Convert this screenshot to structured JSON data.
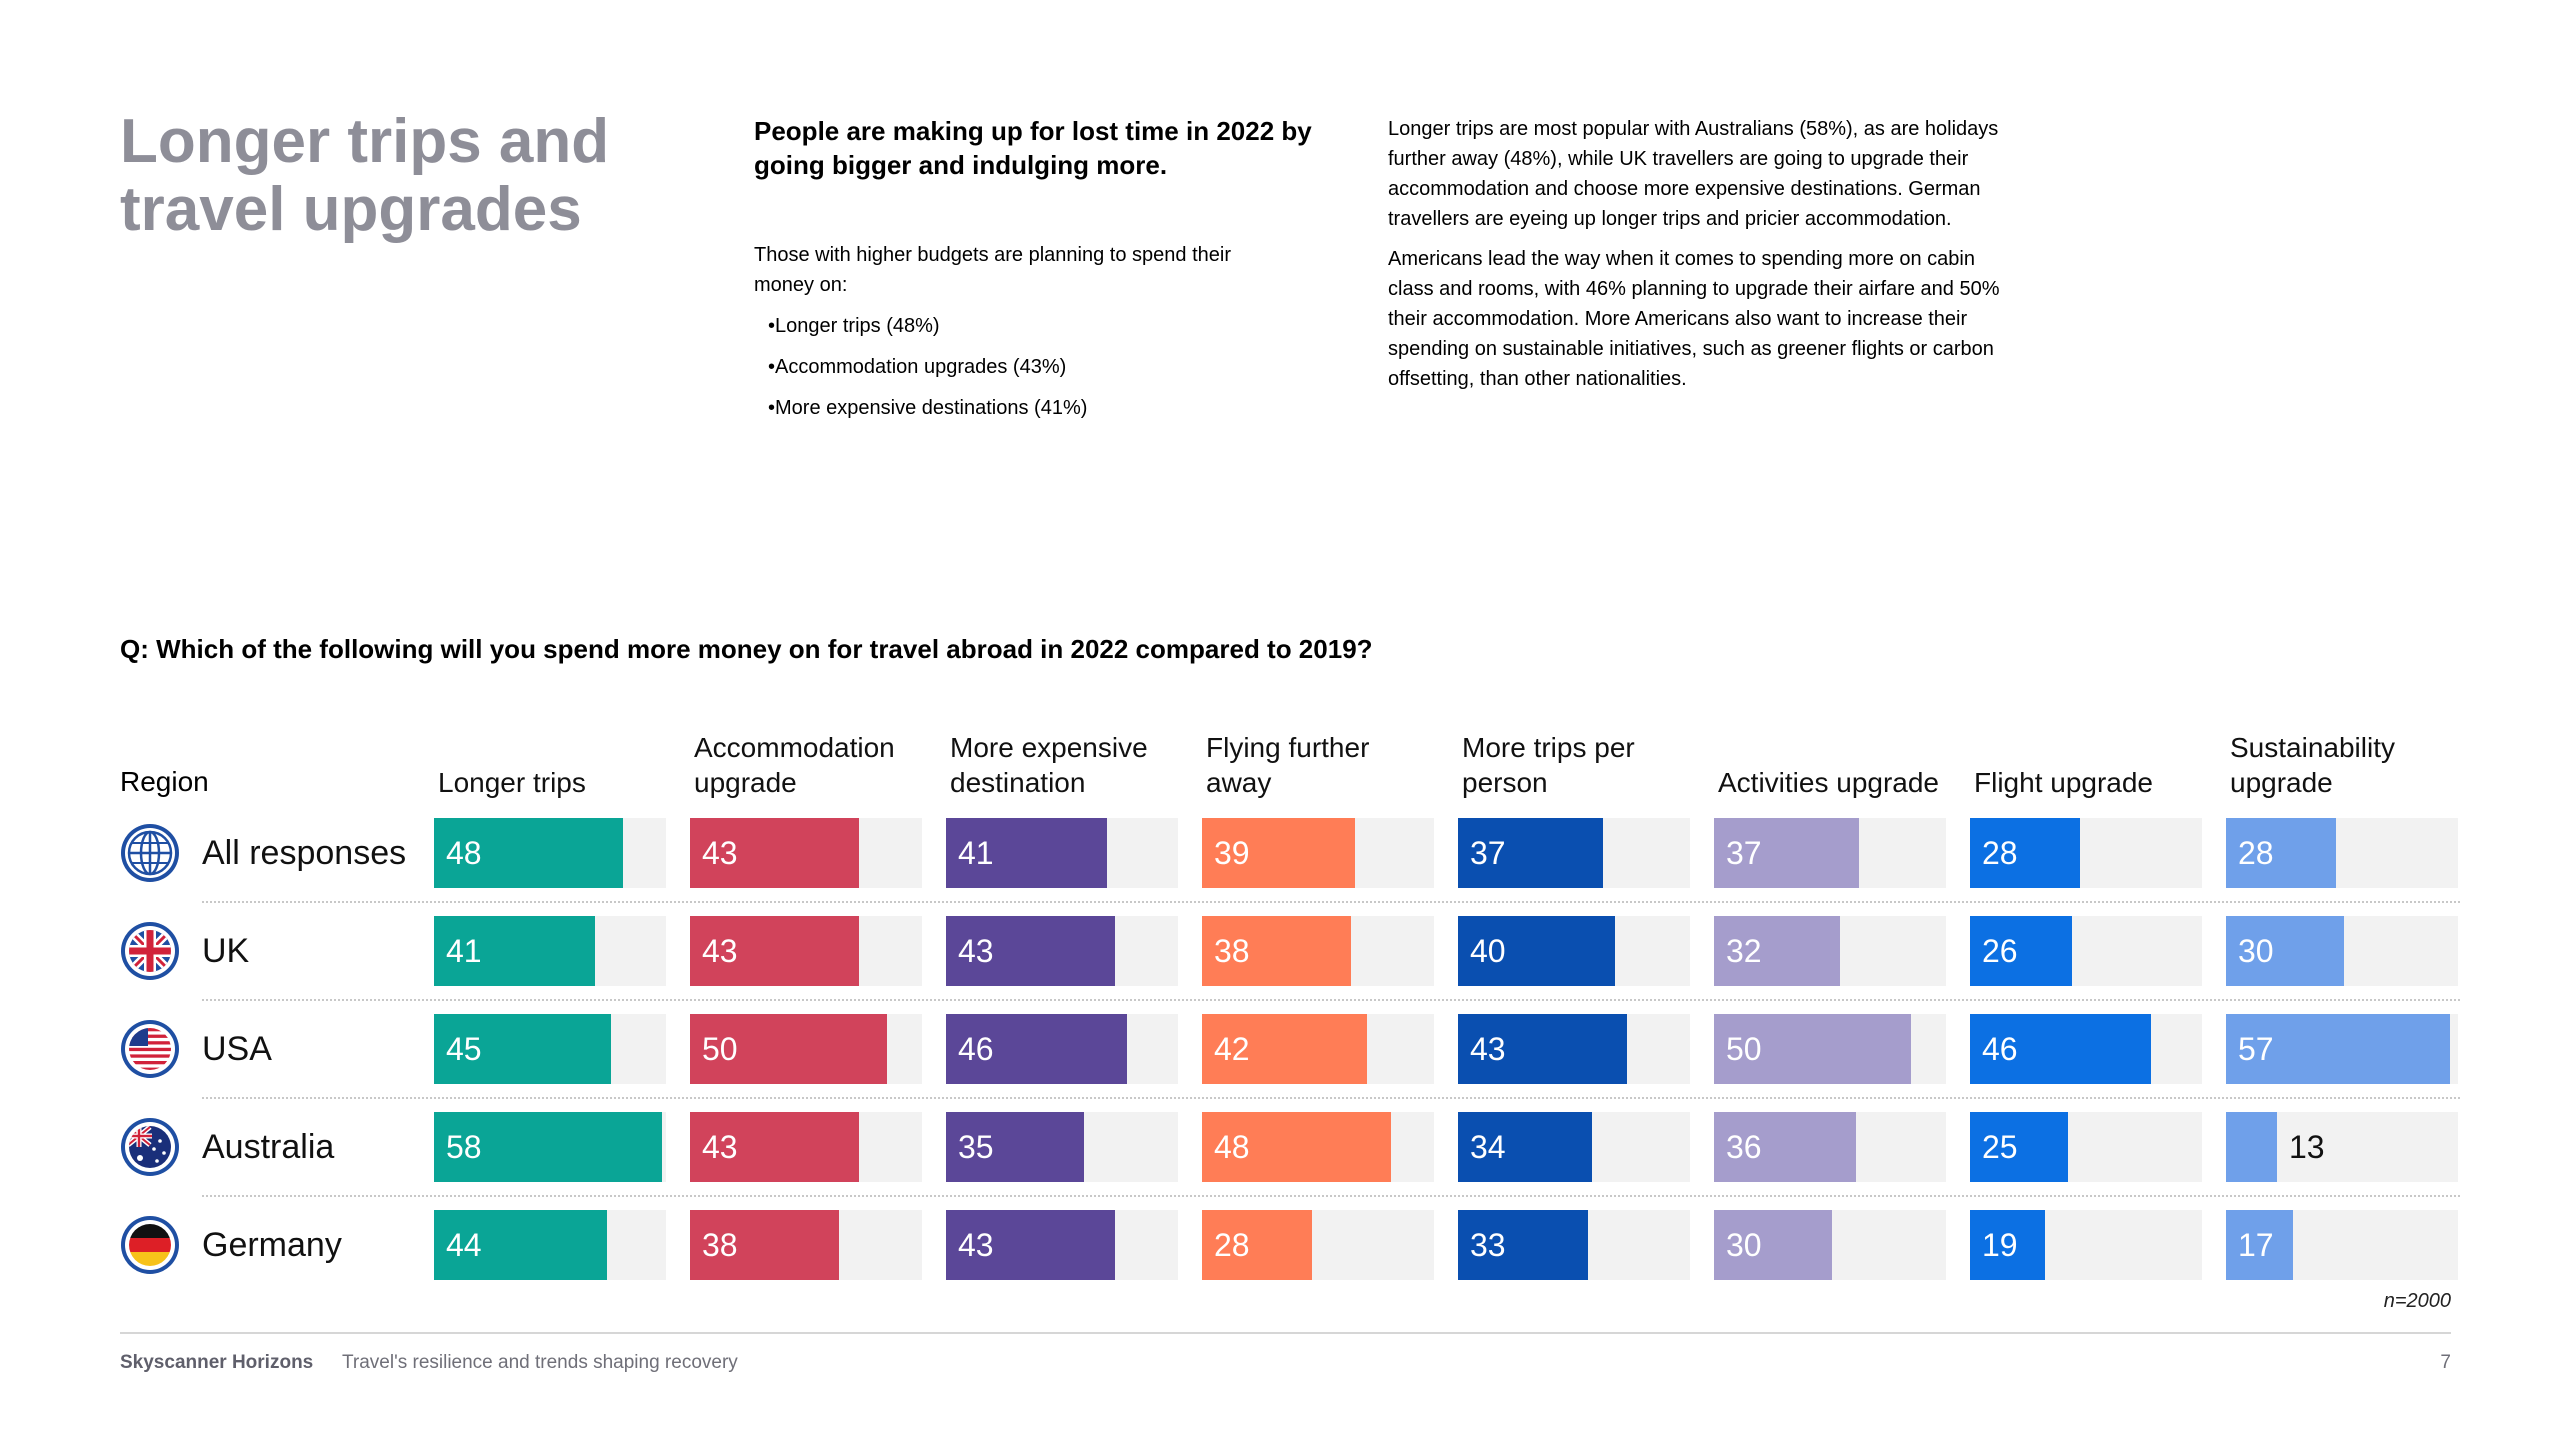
{
  "slide": {
    "title": "Longer trips and travel upgrades",
    "intro_heading": "People are making up for lost time in 2022 by going bigger and indulging more.",
    "intro_lead": "Those with higher budgets are planning to spend their money on:",
    "intro_bullets": [
      "Longer trips (48%)",
      "Accommodation upgrades (43%)",
      "More expensive destinations (41%)"
    ],
    "body_paragraphs": [
      "Longer trips are most popular with Australians (58%), as are holidays further away (48%), while UK travellers are going to upgrade their accommodation and choose more expensive destinations. German travellers are eyeing up longer trips and pricier accommodation.",
      "Americans lead the way when it comes to spending more on cabin class and rooms, with 46% planning to upgrade their airfare and 50% their accommodation. More Americans also want to increase their spending on sustainable initiatives, such as greener flights or carbon offsetting, than other nationalities."
    ],
    "question": "Q: Which of the following will you spend more money on for travel abroad in 2022 compared to 2019?"
  },
  "chart_data": {
    "type": "bar",
    "title": "Q: Which of the following will you spend more money on for travel abroad in 2022 compared to 2019?",
    "row_header": "Region",
    "regions": [
      "All responses",
      "UK",
      "USA",
      "Australia",
      "Germany"
    ],
    "region_icons": [
      "globe-icon",
      "uk-flag-icon",
      "usa-flag-icon",
      "australia-flag-icon",
      "germany-flag-icon"
    ],
    "series": [
      {
        "name": "Longer trips",
        "color": "#0aa596",
        "values": [
          48,
          41,
          45,
          58,
          44
        ]
      },
      {
        "name": "Accommodation upgrade",
        "color": "#d1435b",
        "values": [
          43,
          43,
          50,
          43,
          38
        ]
      },
      {
        "name": "More expensive destination",
        "color": "#5b4798",
        "values": [
          41,
          43,
          46,
          35,
          43
        ]
      },
      {
        "name": "Flying further away",
        "color": "#ff7d56",
        "values": [
          39,
          38,
          42,
          48,
          28
        ]
      },
      {
        "name": "More trips per person",
        "color": "#0a4fb0",
        "values": [
          37,
          40,
          43,
          34,
          33
        ]
      },
      {
        "name": "Activities upgrade",
        "color": "#a59dcc",
        "values": [
          37,
          32,
          50,
          36,
          30
        ]
      },
      {
        "name": "Flight upgrade",
        "color": "#0c70e3",
        "values": [
          28,
          26,
          46,
          25,
          19
        ]
      },
      {
        "name": "Sustainability upgrade",
        "color": "#6fa0ea",
        "values": [
          28,
          30,
          57,
          13,
          17
        ]
      }
    ],
    "value_max": 58,
    "unit": "%",
    "note": "n=2000"
  },
  "footer": {
    "brand": "Skyscanner Horizons",
    "subtitle": "Travel's resilience and trends shaping recovery",
    "page_number": "7"
  }
}
